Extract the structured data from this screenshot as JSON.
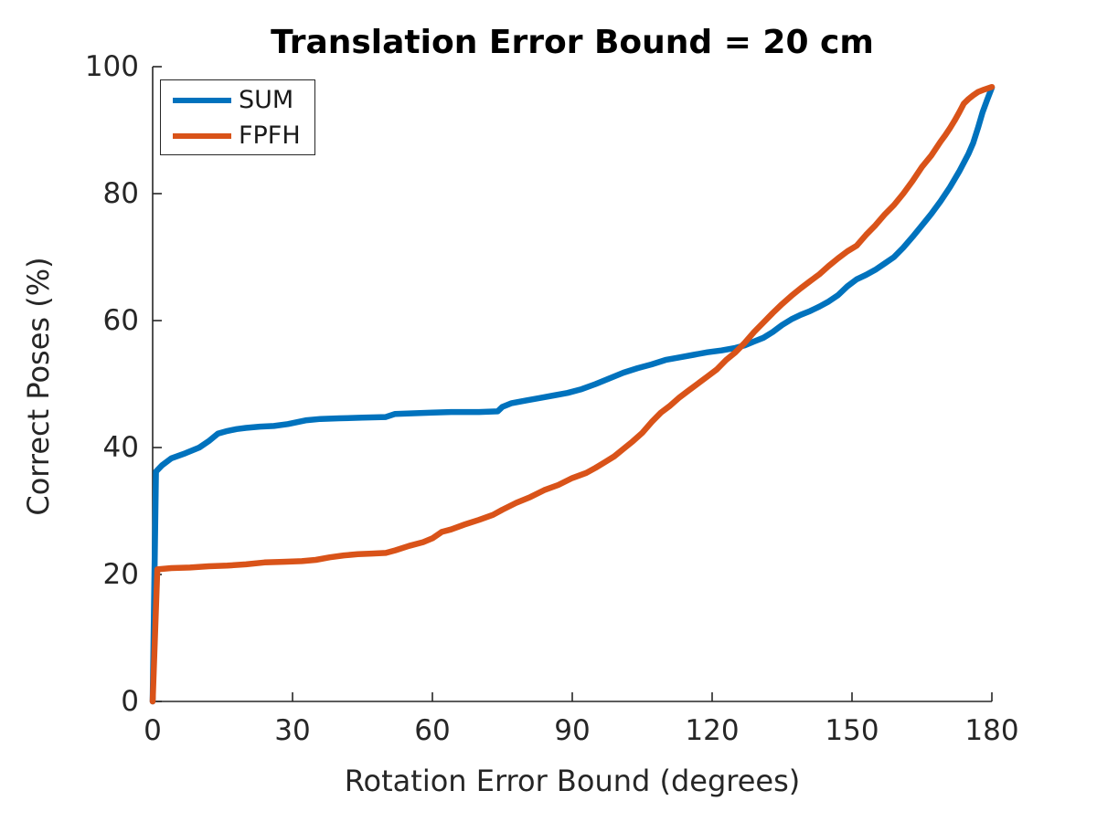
{
  "title": "Translation Error Bound = 20 cm",
  "x_axis": {
    "label": "Rotation Error Bound (degrees)",
    "ticks": [
      0,
      30,
      60,
      90,
      120,
      150,
      180
    ],
    "range": [
      0,
      180
    ]
  },
  "y_axis": {
    "label": "Correct Poses (%)",
    "ticks": [
      0,
      20,
      40,
      60,
      80,
      100
    ],
    "range": [
      0,
      100
    ]
  },
  "colors": {
    "sum_line": "#0072BD",
    "fpfh_line": "#D95319",
    "axis": "#262626",
    "background": "#FFFFFF"
  },
  "legend": {
    "position": "top-left",
    "entries": [
      {
        "label": "SUM"
      },
      {
        "label": "FPFH"
      }
    ]
  },
  "chart_data": {
    "type": "line",
    "title": "Translation Error Bound = 20 cm",
    "xlabel": "Rotation Error Bound (degrees)",
    "ylabel": "Correct Poses (%)",
    "xlim": [
      0,
      180
    ],
    "ylim": [
      0,
      100
    ],
    "grid": false,
    "legend_position": "top-left",
    "series": [
      {
        "name": "SUM",
        "color": "#0072BD",
        "points": [
          [
            0,
            0
          ],
          [
            0.7,
            36.2
          ],
          [
            2,
            37.2
          ],
          [
            4,
            38.3
          ],
          [
            7,
            39.1
          ],
          [
            10,
            40.0
          ],
          [
            12,
            41.0
          ],
          [
            14,
            42.2
          ],
          [
            16,
            42.6
          ],
          [
            18,
            42.9
          ],
          [
            20,
            43.1
          ],
          [
            23,
            43.3
          ],
          [
            26,
            43.4
          ],
          [
            29,
            43.7
          ],
          [
            31,
            44.0
          ],
          [
            33,
            44.3
          ],
          [
            36,
            44.5
          ],
          [
            40,
            44.6
          ],
          [
            45,
            44.7
          ],
          [
            50,
            44.8
          ],
          [
            52,
            45.3
          ],
          [
            56,
            45.4
          ],
          [
            60,
            45.5
          ],
          [
            64,
            45.6
          ],
          [
            70,
            45.6
          ],
          [
            74,
            45.7
          ],
          [
            75,
            46.4
          ],
          [
            77,
            47.0
          ],
          [
            80,
            47.4
          ],
          [
            83,
            47.8
          ],
          [
            86,
            48.2
          ],
          [
            89,
            48.6
          ],
          [
            92,
            49.2
          ],
          [
            95,
            50.0
          ],
          [
            98,
            50.9
          ],
          [
            101,
            51.8
          ],
          [
            104,
            52.5
          ],
          [
            107,
            53.1
          ],
          [
            110,
            53.8
          ],
          [
            113,
            54.2
          ],
          [
            116,
            54.6
          ],
          [
            119,
            55.0
          ],
          [
            122,
            55.3
          ],
          [
            125,
            55.7
          ],
          [
            127,
            56.1
          ],
          [
            129,
            56.7
          ],
          [
            131,
            57.3
          ],
          [
            133,
            58.2
          ],
          [
            135,
            59.3
          ],
          [
            137,
            60.2
          ],
          [
            139,
            60.9
          ],
          [
            141,
            61.5
          ],
          [
            143,
            62.2
          ],
          [
            145,
            63.0
          ],
          [
            147,
            64.0
          ],
          [
            149,
            65.4
          ],
          [
            151,
            66.5
          ],
          [
            153,
            67.2
          ],
          [
            155,
            68.0
          ],
          [
            157,
            69.0
          ],
          [
            159,
            70.0
          ],
          [
            161,
            71.5
          ],
          [
            163,
            73.2
          ],
          [
            165,
            75.0
          ],
          [
            167,
            76.8
          ],
          [
            169,
            78.8
          ],
          [
            171,
            81.0
          ],
          [
            173,
            83.5
          ],
          [
            175,
            86.3
          ],
          [
            176,
            88.0
          ],
          [
            177,
            90.3
          ],
          [
            178,
            92.8
          ],
          [
            179,
            94.8
          ],
          [
            180,
            96.7
          ]
        ]
      },
      {
        "name": "FPFH",
        "color": "#D95319",
        "points": [
          [
            0,
            0
          ],
          [
            1,
            20.8
          ],
          [
            4,
            21.0
          ],
          [
            8,
            21.1
          ],
          [
            12,
            21.3
          ],
          [
            16,
            21.4
          ],
          [
            20,
            21.6
          ],
          [
            24,
            21.9
          ],
          [
            28,
            22.0
          ],
          [
            32,
            22.1
          ],
          [
            35,
            22.3
          ],
          [
            38,
            22.7
          ],
          [
            41,
            23.0
          ],
          [
            44,
            23.2
          ],
          [
            47,
            23.3
          ],
          [
            50,
            23.4
          ],
          [
            52,
            23.8
          ],
          [
            55,
            24.5
          ],
          [
            58,
            25.1
          ],
          [
            60,
            25.7
          ],
          [
            62,
            26.7
          ],
          [
            64,
            27.1
          ],
          [
            67,
            27.9
          ],
          [
            70,
            28.6
          ],
          [
            73,
            29.4
          ],
          [
            75,
            30.2
          ],
          [
            78,
            31.3
          ],
          [
            81,
            32.2
          ],
          [
            84,
            33.3
          ],
          [
            87,
            34.1
          ],
          [
            90,
            35.2
          ],
          [
            93,
            36.0
          ],
          [
            95,
            36.8
          ],
          [
            97,
            37.7
          ],
          [
            99,
            38.6
          ],
          [
            101,
            39.8
          ],
          [
            103,
            41.0
          ],
          [
            105,
            42.3
          ],
          [
            107,
            44.0
          ],
          [
            109,
            45.5
          ],
          [
            111,
            46.6
          ],
          [
            113,
            47.9
          ],
          [
            115,
            49.0
          ],
          [
            117,
            50.1
          ],
          [
            119,
            51.2
          ],
          [
            121,
            52.3
          ],
          [
            123,
            53.8
          ],
          [
            125,
            55.0
          ],
          [
            127,
            56.5
          ],
          [
            129,
            58.2
          ],
          [
            131,
            59.7
          ],
          [
            133,
            61.2
          ],
          [
            135,
            62.6
          ],
          [
            137,
            63.9
          ],
          [
            139,
            65.1
          ],
          [
            141,
            66.2
          ],
          [
            143,
            67.3
          ],
          [
            145,
            68.6
          ],
          [
            147,
            69.8
          ],
          [
            149,
            70.9
          ],
          [
            151,
            71.8
          ],
          [
            153,
            73.5
          ],
          [
            155,
            75.0
          ],
          [
            157,
            76.7
          ],
          [
            159,
            78.2
          ],
          [
            161,
            80.0
          ],
          [
            163,
            82.0
          ],
          [
            165,
            84.2
          ],
          [
            167,
            86.0
          ],
          [
            169,
            88.2
          ],
          [
            170,
            89.2
          ],
          [
            171,
            90.3
          ],
          [
            172,
            91.5
          ],
          [
            173,
            92.8
          ],
          [
            174,
            94.2
          ],
          [
            175,
            94.9
          ],
          [
            176,
            95.5
          ],
          [
            177,
            96.0
          ],
          [
            178,
            96.3
          ],
          [
            180,
            96.8
          ]
        ]
      }
    ]
  }
}
